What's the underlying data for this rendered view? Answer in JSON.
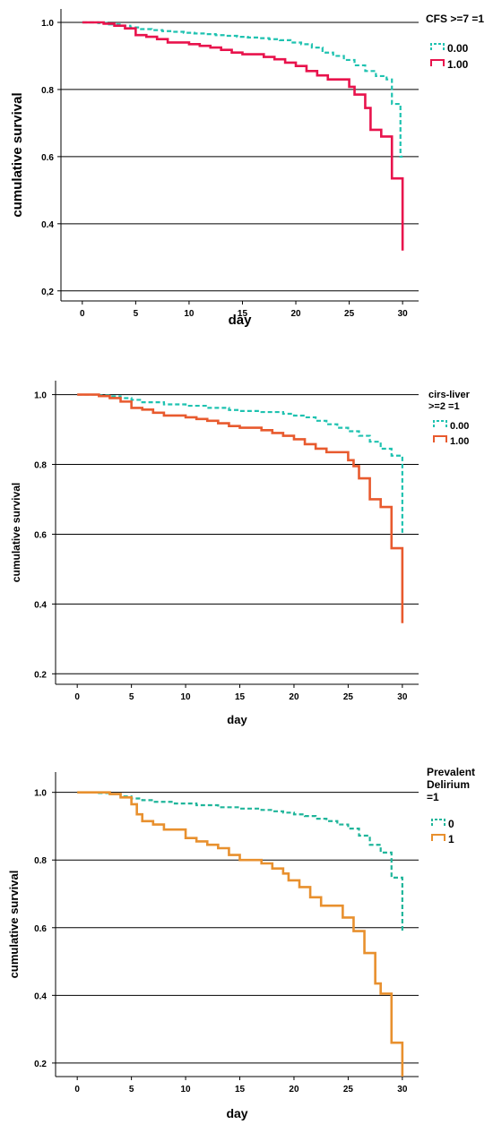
{
  "chart_data": [
    {
      "type": "line",
      "xlabel": "day",
      "ylabel": "cumulative survival",
      "xlim": [
        -2,
        31.5
      ],
      "ylim": [
        0.17,
        1.04
      ],
      "x_ticks": [
        "0",
        "5",
        "10",
        "15",
        "20",
        "25",
        "30"
      ],
      "y_ticks": [
        "1.0",
        "0.8",
        "0.6",
        "0.4",
        "0,2"
      ],
      "y_tick_values": [
        1.0,
        0.8,
        0.6,
        0.4,
        0.2
      ],
      "grid": true,
      "legend_title": "CFS >=7 =1",
      "legend_position": "top-right",
      "series": [
        {
          "name": "0.00",
          "color": "#1fc2b0",
          "dashed": true,
          "x": [
            0,
            1.5,
            2.5,
            3.5,
            4.5,
            5.5,
            6.5,
            7.5,
            8.5,
            9.5,
            10.5,
            11.5,
            12.5,
            13.5,
            14.5,
            15.5,
            16.5,
            17.5,
            18.5,
            19.5,
            20.5,
            21.5,
            22.5,
            23.5,
            24.5,
            25.5,
            26.5,
            27.5,
            28.5,
            29.0,
            29.8,
            30
          ],
          "y": [
            1.0,
            0.998,
            0.994,
            0.99,
            0.985,
            0.98,
            0.977,
            0.974,
            0.972,
            0.969,
            0.967,
            0.965,
            0.962,
            0.96,
            0.957,
            0.955,
            0.953,
            0.95,
            0.947,
            0.94,
            0.935,
            0.925,
            0.91,
            0.9,
            0.888,
            0.872,
            0.855,
            0.84,
            0.83,
            0.757,
            0.6,
            0.6
          ]
        },
        {
          "name": "1.00",
          "color": "#e8134c",
          "dashed": false,
          "x": [
            0,
            2,
            3,
            4,
            5,
            6,
            7,
            8,
            10,
            11,
            12,
            13,
            14,
            15,
            17,
            18,
            19,
            20,
            21,
            22,
            23,
            25,
            25.5,
            26.5,
            27,
            28,
            29,
            30,
            30
          ],
          "y": [
            1.0,
            0.996,
            0.99,
            0.982,
            0.962,
            0.957,
            0.95,
            0.94,
            0.935,
            0.93,
            0.925,
            0.918,
            0.91,
            0.905,
            0.897,
            0.89,
            0.88,
            0.87,
            0.855,
            0.842,
            0.83,
            0.808,
            0.785,
            0.745,
            0.68,
            0.66,
            0.535,
            0.32,
            0.32
          ]
        }
      ]
    },
    {
      "type": "line",
      "xlabel": "day",
      "ylabel": "cumulative survival",
      "xlim": [
        -2,
        31.5
      ],
      "ylim": [
        0.17,
        1.04
      ],
      "x_ticks": [
        "0",
        "5",
        "10",
        "15",
        "20",
        "25",
        "30"
      ],
      "y_ticks": [
        "1.0",
        "0.8",
        "0.6",
        "0.4",
        "0.2"
      ],
      "y_tick_values": [
        1.0,
        0.8,
        0.6,
        0.4,
        0.2
      ],
      "grid": true,
      "legend_title": "cirs-liver >=2 =1",
      "legend_title_lines": [
        "cirs-liver",
        ">=2 =1"
      ],
      "legend_position": "top-right",
      "series": [
        {
          "name": "0.00",
          "color": "#1fc2b0",
          "dashed": true,
          "x": [
            0,
            2,
            3,
            4,
            5,
            6,
            8,
            10,
            12,
            14,
            15,
            17,
            19,
            20,
            21,
            22,
            23,
            24,
            25,
            26,
            27,
            28,
            29,
            30,
            30
          ],
          "y": [
            1.0,
            0.998,
            0.995,
            0.99,
            0.985,
            0.978,
            0.972,
            0.968,
            0.962,
            0.956,
            0.953,
            0.95,
            0.945,
            0.94,
            0.935,
            0.925,
            0.915,
            0.905,
            0.895,
            0.882,
            0.865,
            0.845,
            0.825,
            0.75,
            0.6
          ]
        },
        {
          "name": "1.00",
          "color": "#e85a2e",
          "dashed": false,
          "x": [
            0,
            2,
            3,
            4,
            5,
            6,
            7,
            8,
            10,
            11,
            12,
            13,
            14,
            15,
            17,
            18,
            19,
            20,
            21,
            22,
            23,
            25,
            25.5,
            26,
            27,
            28,
            29,
            30,
            30
          ],
          "y": [
            1.0,
            0.996,
            0.99,
            0.98,
            0.962,
            0.957,
            0.948,
            0.94,
            0.935,
            0.93,
            0.925,
            0.918,
            0.91,
            0.905,
            0.898,
            0.89,
            0.882,
            0.872,
            0.858,
            0.845,
            0.835,
            0.812,
            0.795,
            0.76,
            0.7,
            0.678,
            0.56,
            0.345,
            0.345
          ]
        }
      ]
    },
    {
      "type": "line",
      "xlabel": "day",
      "ylabel": "cumulative survival",
      "xlim": [
        -2,
        31.5
      ],
      "ylim": [
        0.16,
        1.06
      ],
      "x_ticks": [
        "0",
        "5",
        "10",
        "15",
        "20",
        "25",
        "30"
      ],
      "y_ticks": [
        "1.0",
        "0.8",
        "0.6",
        "0.4",
        "0.2"
      ],
      "y_tick_values": [
        1.0,
        0.8,
        0.6,
        0.4,
        0.2
      ],
      "grid": true,
      "legend_title": "Prevalent Delirium =1",
      "legend_title_lines": [
        "Prevalent",
        "Delirium",
        "=1"
      ],
      "legend_position": "top-right",
      "series": [
        {
          "name": "0",
          "color": "#1fb59a",
          "dashed": true,
          "x": [
            0,
            2,
            3,
            4,
            5,
            6,
            7,
            9,
            11,
            13,
            15,
            17,
            18,
            19,
            20,
            21,
            22,
            23,
            24,
            25,
            26,
            27,
            28,
            29,
            30,
            30
          ],
          "y": [
            1.0,
            0.998,
            0.995,
            0.988,
            0.982,
            0.977,
            0.972,
            0.967,
            0.962,
            0.956,
            0.952,
            0.948,
            0.944,
            0.94,
            0.935,
            0.93,
            0.922,
            0.915,
            0.905,
            0.893,
            0.872,
            0.845,
            0.822,
            0.748,
            0.585,
            0.585
          ]
        },
        {
          "name": "1",
          "color": "#e8902e",
          "dashed": false,
          "x": [
            0,
            3,
            4,
            5,
            5.5,
            6,
            7,
            8,
            10,
            11,
            12,
            13,
            14,
            15,
            17,
            18,
            19,
            19.5,
            20.5,
            21.5,
            22.5,
            24.5,
            25.5,
            26.5,
            27.5,
            28,
            29,
            30,
            30
          ],
          "y": [
            1.0,
            0.995,
            0.985,
            0.965,
            0.935,
            0.915,
            0.905,
            0.89,
            0.865,
            0.855,
            0.845,
            0.835,
            0.815,
            0.8,
            0.79,
            0.775,
            0.76,
            0.74,
            0.72,
            0.69,
            0.665,
            0.63,
            0.59,
            0.525,
            0.435,
            0.405,
            0.26,
            0.16,
            0.16
          ]
        }
      ]
    }
  ]
}
